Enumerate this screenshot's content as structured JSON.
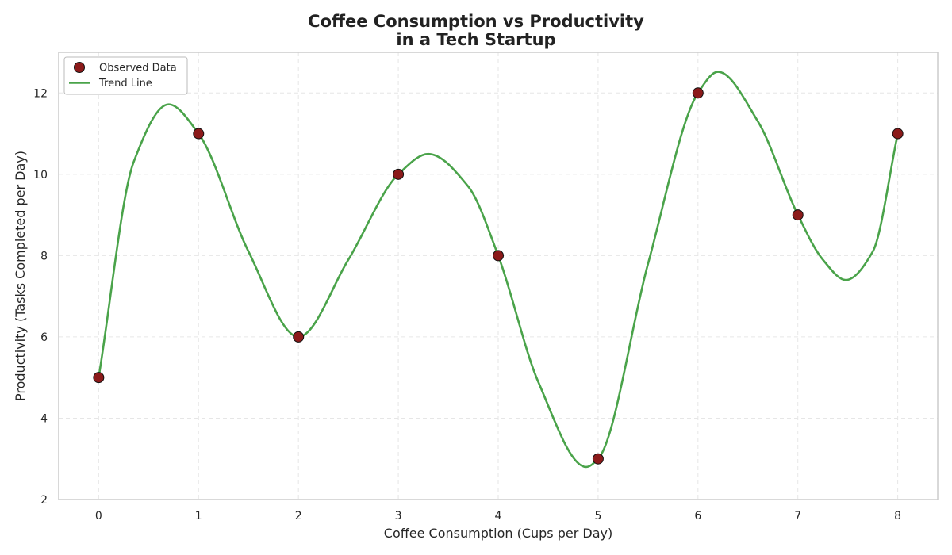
{
  "chart_data": {
    "type": "line",
    "title": "Coffee Consumption vs Productivity\nin a Tech Startup",
    "xlabel": "Coffee Consumption (Cups per Day)",
    "ylabel": "Productivity (Tasks Completed per Day)",
    "xlim": [
      -0.4,
      8.4
    ],
    "ylim": [
      2,
      13
    ],
    "xticks": [
      0,
      1,
      2,
      3,
      4,
      5,
      6,
      7,
      8
    ],
    "yticks": [
      2,
      4,
      6,
      8,
      10,
      12
    ],
    "grid": true,
    "legend_position": "top-left",
    "series": [
      {
        "name": "Observed Data",
        "kind": "scatter",
        "x": [
          0,
          1,
          2,
          3,
          4,
          5,
          6,
          7,
          8
        ],
        "y": [
          5,
          11,
          6,
          10,
          8,
          3,
          12,
          9,
          11
        ],
        "color": "#8b1a1a",
        "edge_color": "#111111"
      },
      {
        "name": "Trend Line",
        "kind": "line",
        "x": [
          0,
          0.35,
          0.7,
          1,
          1.5,
          2,
          2.5,
          3,
          3.3,
          3.7,
          4,
          4.4,
          4.88,
          5,
          5.5,
          6,
          6.2,
          6.6,
          7,
          7.25,
          7.48,
          7.75,
          8
        ],
        "y": [
          5,
          10.3,
          11.72,
          11,
          8.1,
          6,
          7.9,
          10,
          10.5,
          9.7,
          8,
          4.9,
          2.8,
          3,
          7.8,
          12,
          12.52,
          11.3,
          9,
          7.9,
          7.4,
          8.1,
          11
        ],
        "color": "#4aa34a"
      }
    ]
  }
}
